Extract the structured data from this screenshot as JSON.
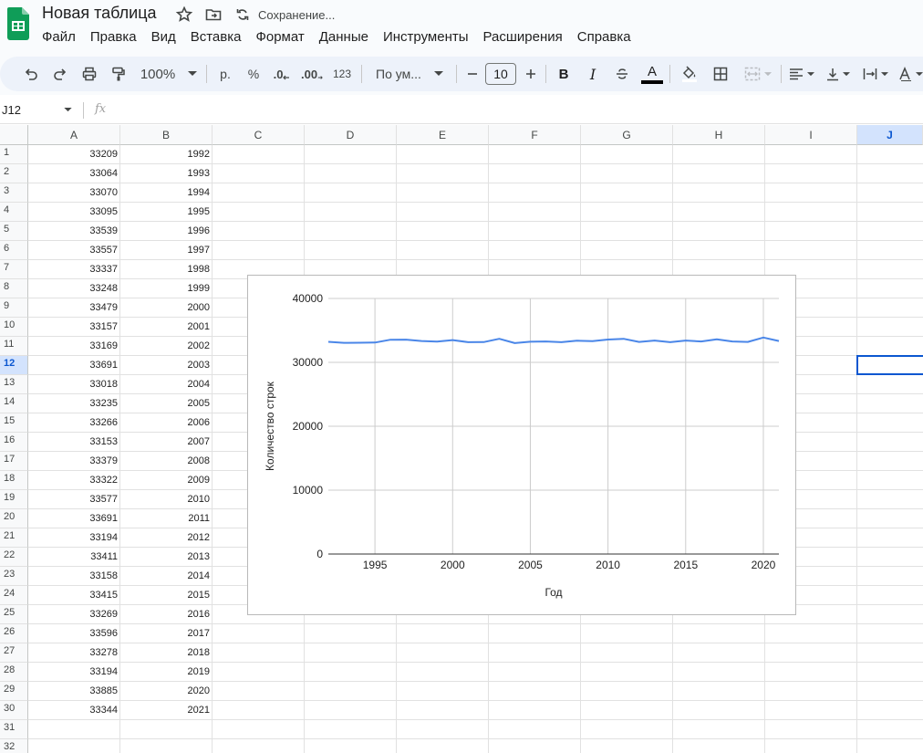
{
  "app": {
    "doc_title": "Новая таблица",
    "saving_status": "Сохранение..."
  },
  "menu": [
    "Файл",
    "Правка",
    "Вид",
    "Вставка",
    "Формат",
    "Данные",
    "Инструменты",
    "Расширения",
    "Справка"
  ],
  "toolbar": {
    "zoom": "100%",
    "currency": "р.",
    "percent": "%",
    "decrease_decimals": ".0",
    "increase_decimals": ".00",
    "number_format": "123",
    "font_name": "По ум...",
    "font_size": "10",
    "bold": "B",
    "italic": "I",
    "text_color": "A",
    "text_color_value": "#000000"
  },
  "formula_bar": {
    "name_box": "J12",
    "fx": "fx",
    "value": ""
  },
  "columns": [
    "A",
    "B",
    "C",
    "D",
    "E",
    "F",
    "G",
    "H",
    "I",
    "J"
  ],
  "selected_column": "J",
  "selected_row": 12,
  "row_count": 32,
  "rows": [
    [
      "33209",
      "1992"
    ],
    [
      "33064",
      "1993"
    ],
    [
      "33070",
      "1994"
    ],
    [
      "33095",
      "1995"
    ],
    [
      "33539",
      "1996"
    ],
    [
      "33557",
      "1997"
    ],
    [
      "33337",
      "1998"
    ],
    [
      "33248",
      "1999"
    ],
    [
      "33479",
      "2000"
    ],
    [
      "33157",
      "2001"
    ],
    [
      "33169",
      "2002"
    ],
    [
      "33691",
      "2003"
    ],
    [
      "33018",
      "2004"
    ],
    [
      "33235",
      "2005"
    ],
    [
      "33266",
      "2006"
    ],
    [
      "33153",
      "2007"
    ],
    [
      "33379",
      "2008"
    ],
    [
      "33322",
      "2009"
    ],
    [
      "33577",
      "2010"
    ],
    [
      "33691",
      "2011"
    ],
    [
      "33194",
      "2012"
    ],
    [
      "33411",
      "2013"
    ],
    [
      "33158",
      "2014"
    ],
    [
      "33415",
      "2015"
    ],
    [
      "33269",
      "2016"
    ],
    [
      "33596",
      "2017"
    ],
    [
      "33278",
      "2018"
    ],
    [
      "33194",
      "2019"
    ],
    [
      "33885",
      "2020"
    ],
    [
      "33344",
      "2021"
    ]
  ],
  "chart_data": {
    "type": "line",
    "x": [
      1992,
      1993,
      1994,
      1995,
      1996,
      1997,
      1998,
      1999,
      2000,
      2001,
      2002,
      2003,
      2004,
      2005,
      2006,
      2007,
      2008,
      2009,
      2010,
      2011,
      2012,
      2013,
      2014,
      2015,
      2016,
      2017,
      2018,
      2019,
      2020,
      2021
    ],
    "series": [
      {
        "values": [
          33209,
          33064,
          33070,
          33095,
          33539,
          33557,
          33337,
          33248,
          33479,
          33157,
          33169,
          33691,
          33018,
          33235,
          33266,
          33153,
          33379,
          33322,
          33577,
          33691,
          33194,
          33411,
          33158,
          33415,
          33269,
          33596,
          33278,
          33194,
          33885,
          33344
        ],
        "color": "#4a86e8"
      }
    ],
    "xlabel": "Год",
    "ylabel": "Количество строк",
    "xlim": [
      1992,
      2021
    ],
    "ylim": [
      0,
      40000
    ],
    "x_ticks": [
      1995,
      2000,
      2005,
      2010,
      2015,
      2020
    ],
    "y_ticks": [
      0,
      10000,
      20000,
      30000,
      40000
    ],
    "grid": true,
    "legend": "none"
  }
}
